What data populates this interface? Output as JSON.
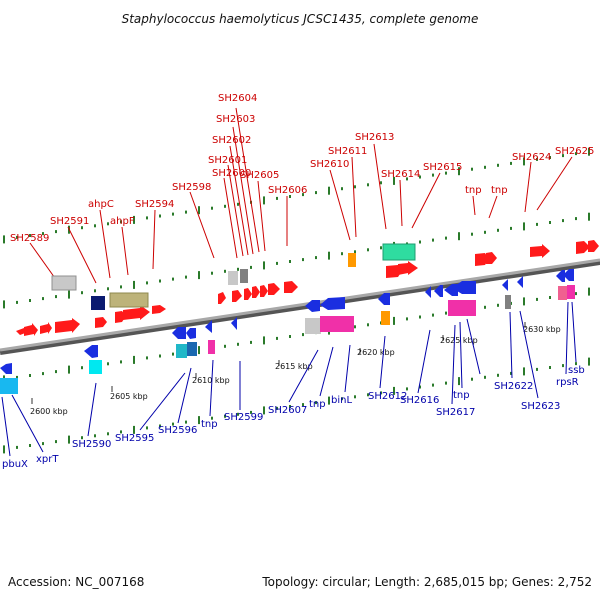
{
  "title": "Staphylococcus haemolyticus JCSC1435, complete genome",
  "footer": {
    "accession": "Accession: NC_007168",
    "topology": "Topology: circular; Length: 2,685,015 bp; Genes: 2,752"
  },
  "colors": {
    "forward_label": "#cc0000",
    "reverse_label": "#0000aa",
    "backbone": "#808080",
    "tick": "#2a7a2a"
  },
  "scale_ticks": [
    "2600 kbp",
    "2605 kbp",
    "2610 kbp",
    "2615 kbp",
    "2620 kbp",
    "2625 kbp",
    "2630 kbp"
  ],
  "forward_labels": [
    "SH2589",
    "SH2591",
    "ahpC",
    "ahpF",
    "SH2594",
    "SH2598",
    "SH2600",
    "SH2601",
    "SH2602",
    "SH2603",
    "SH2604",
    "SH2605",
    "SH2606",
    "SH2610",
    "SH2611",
    "SH2613",
    "SH2614",
    "SH2615",
    "tnp",
    "tnp",
    "SH2624",
    "SH2625"
  ],
  "reverse_labels": [
    "pbuX",
    "xprT",
    "SH2590",
    "SH2595",
    "SH2596",
    "tnp",
    "SH2599",
    "SH2607",
    "tnp",
    "binL",
    "SH2612",
    "SH2616",
    "SH2617",
    "tnp",
    "SH2622",
    "SH2623",
    "rpsR",
    "ssb"
  ]
}
